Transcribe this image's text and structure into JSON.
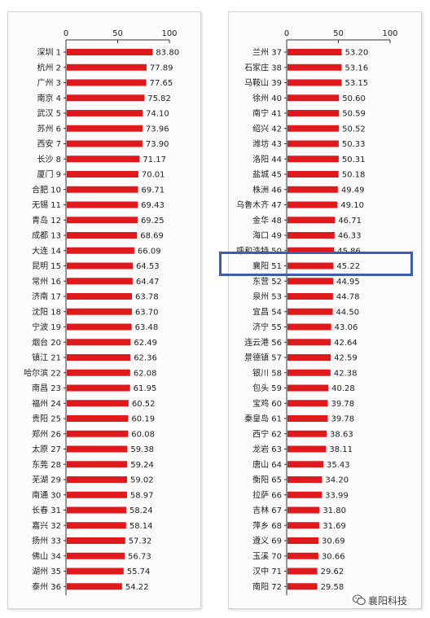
{
  "colors": {
    "bar": "#e0191d",
    "axis": "#333333",
    "highlight": "#3d5eb0",
    "panel_bg": "#fbfbfb"
  },
  "watermark": {
    "text": "襄阳科技",
    "icon": "wechat-icon"
  },
  "chart_data": [
    {
      "type": "bar",
      "orientation": "horizontal",
      "xlim": [
        0,
        100
      ],
      "xticks": [
        "0",
        "50",
        "100"
      ],
      "categories": [
        "深圳 1",
        "杭州 2",
        "广州 3",
        "南京 4",
        "武汉 5",
        "苏州 6",
        "西安 7",
        "长沙 8",
        "厦门 9",
        "合肥 10",
        "无锡 11",
        "青岛 12",
        "成都 13",
        "大连 14",
        "昆明 15",
        "常州 16",
        "济南 17",
        "沈阳 18",
        "宁波 19",
        "烟台 20",
        "镇江 21",
        "哈尔滨 22",
        "南昌 23",
        "福州 24",
        "贵阳 25",
        "郑州 26",
        "太原 27",
        "东莞 28",
        "芜湖 29",
        "南通 30",
        "长春 31",
        "嘉兴 32",
        "扬州 33",
        "佛山 34",
        "湖州 35",
        "泰州 36"
      ],
      "values": [
        83.8,
        77.89,
        77.65,
        75.82,
        74.1,
        73.96,
        73.9,
        71.17,
        70.01,
        69.71,
        69.43,
        69.25,
        68.69,
        66.09,
        64.53,
        64.47,
        63.78,
        63.7,
        63.48,
        62.49,
        62.36,
        62.08,
        61.95,
        60.52,
        60.19,
        60.08,
        59.38,
        59.24,
        59.02,
        58.97,
        58.24,
        58.14,
        57.32,
        56.73,
        55.74,
        54.22
      ],
      "value_labels": [
        "83.80",
        "77.89",
        "77.65",
        "75.82",
        "74.10",
        "73.96",
        "73.90",
        "71.17",
        "70.01",
        "69.71",
        "69.43",
        "69.25",
        "68.69",
        "66.09",
        "64.53",
        "64.47",
        "63.78",
        "63.70",
        "63.48",
        "62.49",
        "62.36",
        "62.08",
        "61.95",
        "60.52",
        "60.19",
        "60.08",
        "59.38",
        "59.24",
        "59.02",
        "58.97",
        "58.24",
        "58.14",
        "57.32",
        "56.73",
        "55.74",
        "54.22"
      ]
    },
    {
      "type": "bar",
      "orientation": "horizontal",
      "xlim": [
        0,
        100
      ],
      "xticks": [
        "0",
        "50",
        "100"
      ],
      "highlighted_category": "襄阳 51",
      "categories": [
        "兰州 37",
        "石家庄 38",
        "马鞍山 39",
        "徐州 40",
        "南宁 41",
        "绍兴 42",
        "潍坊 43",
        "洛阳 44",
        "盐城 45",
        "株洲 46",
        "乌鲁木齐 47",
        "金华 48",
        "海口 49",
        "呼和浩特 50",
        "襄阳 51",
        "东营 52",
        "泉州 53",
        "宜昌 54",
        "济宁 55",
        "连云港 56",
        "景德镇 57",
        "银川 58",
        "包头 59",
        "宝鸡 60",
        "秦皇岛 61",
        "西宁 62",
        "龙岩 63",
        "唐山 64",
        "衡阳 65",
        "拉萨 66",
        "吉林 67",
        "萍乡 68",
        "遵义 69",
        "玉溪 70",
        "汉中 71",
        "南阳 72"
      ],
      "values": [
        53.2,
        53.16,
        53.15,
        50.6,
        50.59,
        50.52,
        50.33,
        50.31,
        50.18,
        49.49,
        49.1,
        46.71,
        46.33,
        45.86,
        45.22,
        44.95,
        44.78,
        44.5,
        43.06,
        42.64,
        42.59,
        42.38,
        40.28,
        39.78,
        39.78,
        38.63,
        38.11,
        35.43,
        34.2,
        33.99,
        31.8,
        31.69,
        30.69,
        30.66,
        29.62,
        29.58
      ],
      "value_labels": [
        "53.20",
        "53.16",
        "53.15",
        "50.60",
        "50.59",
        "50.52",
        "50.33",
        "50.31",
        "50.18",
        "49.49",
        "49.10",
        "46.71",
        "46.33",
        "45.86",
        "45.22",
        "44.95",
        "44.78",
        "44.50",
        "43.06",
        "42.64",
        "42.59",
        "42.38",
        "40.28",
        "39.78",
        "39.78",
        "38.63",
        "38.11",
        "35.43",
        "34.20",
        "33.99",
        "31.80",
        "31.69",
        "30.69",
        "30.66",
        "29.62",
        "29.58"
      ]
    }
  ]
}
